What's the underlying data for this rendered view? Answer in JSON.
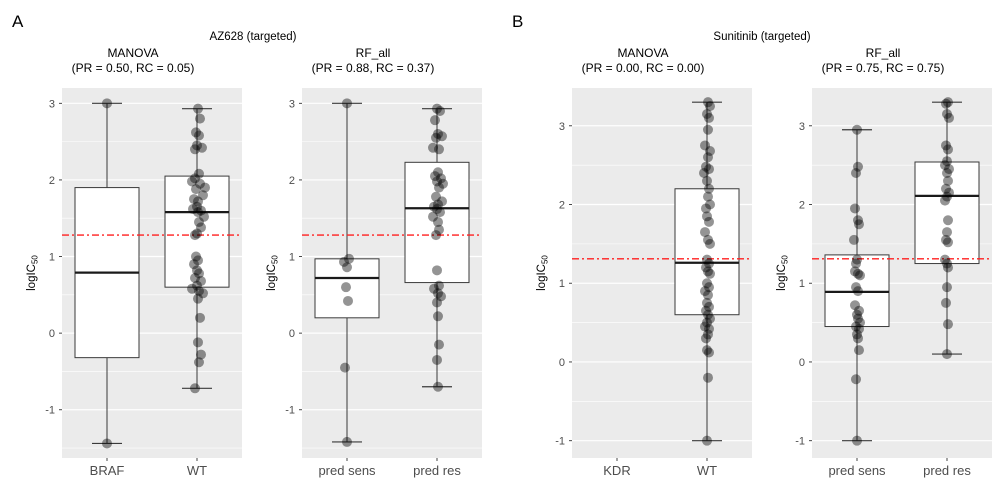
{
  "style": {
    "background": "#FFFFFF",
    "panel_background": "#EBEBEB",
    "gridline": "#FFFFFF",
    "box_fill": "#FFFFFF",
    "box_stroke": "#3A3A3A",
    "median": "#1A1A1A",
    "point": "#000000",
    "point_opacity": 0.42,
    "axis_text": "#4D4D4D",
    "tick": "#333333",
    "threshold": "#FF1F1F",
    "title_text": "#000000"
  },
  "chart_data": [
    {
      "type": "boxplot",
      "panel_label": "A",
      "title": "AZ628 (targeted)",
      "ylabel": "logIC50",
      "legend": "none",
      "grid": "on",
      "subplots": [
        {
          "method": "MANOVA",
          "subtitle": "(PR = 0.50, RC = 0.05)",
          "categories": [
            "BRAF",
            "WT"
          ],
          "yticks": [
            -1,
            0,
            1,
            2,
            3
          ],
          "ylim": [
            -1.63,
            3.2
          ],
          "threshold": 1.28,
          "boxes": [
            {
              "category": "BRAF",
              "min": -1.44,
              "q1": -0.32,
              "median": 0.79,
              "q3": 1.9,
              "max": 3.0
            },
            {
              "category": "WT",
              "min": -0.72,
              "q1": 0.6,
              "median": 1.58,
              "q3": 2.05,
              "max": 2.93
            }
          ],
          "points": [
            [
              [
                3.0,
                0
              ],
              [
                -1.44,
                0
              ]
            ],
            [
              [
                2.93,
                1
              ],
              [
                2.8,
                3
              ],
              [
                2.62,
                -1
              ],
              [
                2.58,
                2
              ],
              [
                2.45,
                0
              ],
              [
                2.42,
                5
              ],
              [
                2.4,
                -2
              ],
              [
                2.08,
                2
              ],
              [
                2.02,
                -2
              ],
              [
                1.98,
                -5
              ],
              [
                1.95,
                3
              ],
              [
                1.9,
                8
              ],
              [
                1.88,
                -1
              ],
              [
                1.8,
                6
              ],
              [
                1.75,
                -3
              ],
              [
                1.72,
                1
              ],
              [
                1.65,
                0
              ],
              [
                1.62,
                -4
              ],
              [
                1.6,
                4
              ],
              [
                1.58,
                1
              ],
              [
                1.52,
                7
              ],
              [
                1.45,
                2
              ],
              [
                1.38,
                4
              ],
              [
                1.3,
                0
              ],
              [
                1.28,
                -2
              ],
              [
                1.0,
                -1
              ],
              [
                0.95,
                1
              ],
              [
                0.9,
                -3
              ],
              [
                0.82,
                0
              ],
              [
                0.78,
                2
              ],
              [
                0.72,
                -2
              ],
              [
                0.68,
                4
              ],
              [
                0.62,
                0
              ],
              [
                0.58,
                -5
              ],
              [
                0.55,
                2
              ],
              [
                0.52,
                6
              ],
              [
                0.45,
                1
              ],
              [
                0.2,
                3
              ],
              [
                -0.12,
                1
              ],
              [
                -0.28,
                4
              ],
              [
                -0.38,
                2
              ],
              [
                -0.72,
                -2
              ]
            ]
          ]
        },
        {
          "method": "RF_all",
          "subtitle": "(PR = 0.88, RC = 0.37)",
          "categories": [
            "pred sens",
            "pred res"
          ],
          "yticks": [
            -1,
            0,
            1,
            2,
            3
          ],
          "ylim": [
            -1.63,
            3.2
          ],
          "threshold": 1.28,
          "boxes": [
            {
              "category": "pred sens",
              "min": -1.42,
              "q1": 0.2,
              "median": 0.72,
              "q3": 0.97,
              "max": 3.0
            },
            {
              "category": "pred res",
              "min": -0.7,
              "q1": 0.66,
              "median": 1.63,
              "q3": 2.23,
              "max": 2.93
            }
          ],
          "points": [
            [
              [
                3.0,
                0
              ],
              [
                0.97,
                2
              ],
              [
                0.93,
                -3
              ],
              [
                0.86,
                0
              ],
              [
                0.6,
                -1
              ],
              [
                0.42,
                1
              ],
              [
                -0.45,
                -2
              ],
              [
                -1.42,
                0
              ]
            ],
            [
              [
                2.93,
                0
              ],
              [
                2.9,
                3
              ],
              [
                2.78,
                -2
              ],
              [
                2.6,
                1
              ],
              [
                2.57,
                5
              ],
              [
                2.55,
                -1
              ],
              [
                2.42,
                -4
              ],
              [
                2.4,
                2
              ],
              [
                2.1,
                1
              ],
              [
                2.05,
                -2
              ],
              [
                2.02,
                4
              ],
              [
                1.98,
                0
              ],
              [
                1.95,
                6
              ],
              [
                1.9,
                2
              ],
              [
                1.78,
                -1
              ],
              [
                1.72,
                5
              ],
              [
                1.68,
                1
              ],
              [
                1.65,
                -3
              ],
              [
                1.62,
                0
              ],
              [
                1.58,
                3
              ],
              [
                1.52,
                -4
              ],
              [
                1.45,
                1
              ],
              [
                1.35,
                2
              ],
              [
                1.28,
                -1
              ],
              [
                0.82,
                0
              ],
              [
                0.62,
                2
              ],
              [
                0.58,
                -3
              ],
              [
                0.52,
                1
              ],
              [
                0.48,
                4
              ],
              [
                0.4,
                0
              ],
              [
                0.22,
                1
              ],
              [
                -0.15,
                2
              ],
              [
                -0.35,
                0
              ],
              [
                -0.7,
                1
              ]
            ]
          ]
        }
      ]
    },
    {
      "type": "boxplot",
      "panel_label": "B",
      "title": "Sunitinib (targeted)",
      "ylabel": "logIC50",
      "legend": "none",
      "grid": "on",
      "subplots": [
        {
          "method": "MANOVA",
          "subtitle": "(PR = 0.00, RC = 0.00)",
          "categories": [
            "KDR",
            "WT"
          ],
          "yticks": [
            -1,
            0,
            1,
            2,
            3
          ],
          "ylim": [
            -1.22,
            3.48
          ],
          "threshold": 1.31,
          "boxes": [
            null,
            {
              "category": "WT",
              "min": -1.0,
              "q1": 0.6,
              "median": 1.26,
              "q3": 2.2,
              "max": 3.3
            }
          ],
          "points": [
            [],
            [
              [
                3.3,
                1
              ],
              [
                3.25,
                3
              ],
              [
                3.15,
                0
              ],
              [
                3.1,
                2
              ],
              [
                2.95,
                1
              ],
              [
                2.75,
                -2
              ],
              [
                2.68,
                3
              ],
              [
                2.6,
                1
              ],
              [
                2.48,
                -1
              ],
              [
                2.45,
                2
              ],
              [
                2.4,
                -3
              ],
              [
                2.3,
                0
              ],
              [
                2.2,
                2
              ],
              [
                2.1,
                1
              ],
              [
                2.0,
                3
              ],
              [
                1.95,
                -1
              ],
              [
                1.85,
                0
              ],
              [
                1.78,
                2
              ],
              [
                1.65,
                -2
              ],
              [
                1.55,
                1
              ],
              [
                1.5,
                3
              ],
              [
                1.3,
                0
              ],
              [
                1.25,
                2
              ],
              [
                1.2,
                -1
              ],
              [
                1.15,
                1
              ],
              [
                1.12,
                3
              ],
              [
                1.0,
                0
              ],
              [
                0.95,
                2
              ],
              [
                0.9,
                -2
              ],
              [
                0.85,
                1
              ],
              [
                0.75,
                0
              ],
              [
                0.7,
                2
              ],
              [
                0.65,
                -1
              ],
              [
                0.6,
                1
              ],
              [
                0.55,
                3
              ],
              [
                0.5,
                0
              ],
              [
                0.45,
                -2
              ],
              [
                0.42,
                2
              ],
              [
                0.35,
                1
              ],
              [
                0.3,
                -1
              ],
              [
                0.15,
                0
              ],
              [
                0.12,
                2
              ],
              [
                -0.2,
                1
              ],
              [
                -1.0,
                0
              ]
            ]
          ]
        },
        {
          "method": "RF_all",
          "subtitle": "(PR = 0.75, RC = 0.75)",
          "categories": [
            "pred sens",
            "pred res"
          ],
          "yticks": [
            -1,
            0,
            1,
            2,
            3
          ],
          "ylim": [
            -1.22,
            3.48
          ],
          "threshold": 1.31,
          "boxes": [
            {
              "category": "pred sens",
              "min": -1.0,
              "q1": 0.45,
              "median": 0.89,
              "q3": 1.36,
              "max": 2.95
            },
            {
              "category": "pred res",
              "min": 0.1,
              "q1": 1.25,
              "median": 2.11,
              "q3": 2.54,
              "max": 3.3
            }
          ],
          "points": [
            [
              [
                2.95,
                0
              ],
              [
                2.48,
                1
              ],
              [
                2.4,
                -1
              ],
              [
                1.95,
                -2
              ],
              [
                1.8,
                1
              ],
              [
                1.75,
                2
              ],
              [
                1.55,
                -3
              ],
              [
                1.3,
                0
              ],
              [
                1.25,
                -1
              ],
              [
                1.15,
                -2
              ],
              [
                1.12,
                1
              ],
              [
                1.1,
                3
              ],
              [
                0.95,
                -1
              ],
              [
                0.9,
                1
              ],
              [
                0.72,
                -2
              ],
              [
                0.65,
                2
              ],
              [
                0.6,
                0
              ],
              [
                0.55,
                1
              ],
              [
                0.5,
                3
              ],
              [
                0.45,
                -1
              ],
              [
                0.42,
                2
              ],
              [
                0.35,
                0
              ],
              [
                0.3,
                1
              ],
              [
                0.15,
                2
              ],
              [
                -0.22,
                -1
              ],
              [
                -1.0,
                0
              ]
            ],
            [
              [
                3.3,
                1
              ],
              [
                3.28,
                -1
              ],
              [
                3.15,
                0
              ],
              [
                3.1,
                2
              ],
              [
                2.75,
                -1
              ],
              [
                2.7,
                1
              ],
              [
                2.55,
                0
              ],
              [
                2.5,
                -2
              ],
              [
                2.45,
                2
              ],
              [
                2.4,
                0
              ],
              [
                2.3,
                1
              ],
              [
                2.2,
                -1
              ],
              [
                2.15,
                2
              ],
              [
                2.1,
                0
              ],
              [
                2.05,
                -2
              ],
              [
                1.8,
                1
              ],
              [
                1.65,
                0
              ],
              [
                1.55,
                -1
              ],
              [
                1.52,
                1
              ],
              [
                1.3,
                -2
              ],
              [
                1.25,
                0
              ],
              [
                1.2,
                1
              ],
              [
                0.95,
                0
              ],
              [
                0.75,
                -1
              ],
              [
                0.48,
                1
              ],
              [
                0.1,
                0
              ]
            ]
          ]
        }
      ]
    }
  ]
}
